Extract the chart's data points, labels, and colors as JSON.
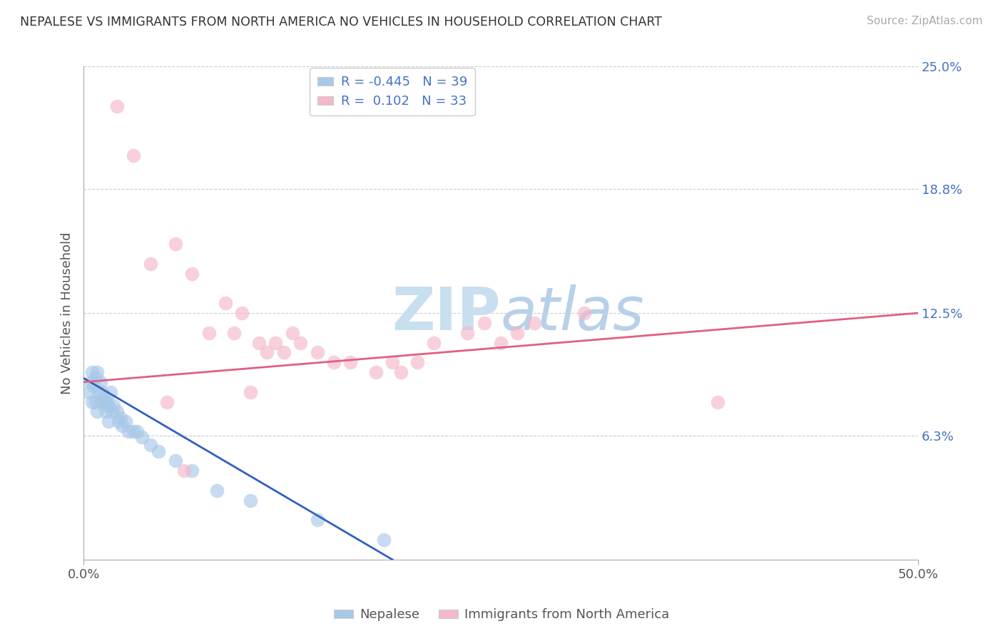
{
  "title": "NEPALESE VS IMMIGRANTS FROM NORTH AMERICA NO VEHICLES IN HOUSEHOLD CORRELATION CHART",
  "source": "Source: ZipAtlas.com",
  "ylabel": "No Vehicles in Household",
  "xmin": 0.0,
  "xmax": 50.0,
  "ymin": 0.0,
  "ymax": 25.0,
  "color_blue": "#a8c8e8",
  "color_pink": "#f4b8c8",
  "line_blue": "#3060c0",
  "line_pink": "#e06080",
  "watermark_color": "#c8dff0",
  "nepalese_x": [
    0.3,
    0.4,
    0.5,
    0.5,
    0.6,
    0.7,
    0.7,
    0.8,
    0.8,
    0.9,
    1.0,
    1.0,
    1.1,
    1.2,
    1.3,
    1.3,
    1.4,
    1.5,
    1.5,
    1.6,
    1.7,
    1.8,
    2.0,
    2.1,
    2.2,
    2.3,
    2.5,
    2.7,
    3.0,
    3.2,
    3.5,
    4.0,
    4.5,
    5.5,
    6.5,
    8.0,
    10.0,
    14.0,
    18.0
  ],
  "nepalese_y": [
    8.5,
    9.0,
    9.5,
    8.0,
    8.8,
    9.2,
    8.0,
    9.5,
    7.5,
    8.5,
    9.0,
    8.0,
    8.5,
    8.2,
    8.0,
    7.5,
    8.0,
    7.8,
    7.0,
    8.5,
    7.5,
    7.8,
    7.5,
    7.0,
    7.2,
    6.8,
    7.0,
    6.5,
    6.5,
    6.5,
    6.2,
    5.8,
    5.5,
    5.0,
    4.5,
    3.5,
    3.0,
    2.0,
    1.0
  ],
  "immigrants_x": [
    2.0,
    3.0,
    4.0,
    5.5,
    6.5,
    7.5,
    8.5,
    9.0,
    9.5,
    10.5,
    11.0,
    11.5,
    12.0,
    12.5,
    13.0,
    14.0,
    15.0,
    16.0,
    17.5,
    18.5,
    19.0,
    20.0,
    21.0,
    23.0,
    24.0,
    26.0,
    27.0,
    30.0,
    38.0,
    25.0,
    10.0,
    5.0,
    6.0
  ],
  "immigrants_y": [
    23.0,
    20.5,
    15.0,
    16.0,
    14.5,
    11.5,
    13.0,
    11.5,
    12.5,
    11.0,
    10.5,
    11.0,
    10.5,
    11.5,
    11.0,
    10.5,
    10.0,
    10.0,
    9.5,
    10.0,
    9.5,
    10.0,
    11.0,
    11.5,
    12.0,
    11.5,
    12.0,
    12.5,
    8.0,
    11.0,
    8.5,
    8.0,
    4.5
  ],
  "blue_line_x0": 0.0,
  "blue_line_y0": 9.2,
  "blue_line_x1": 18.5,
  "blue_line_y1": 0.0,
  "pink_line_x0": 0.0,
  "pink_line_y0": 9.0,
  "pink_line_x1": 50.0,
  "pink_line_y1": 12.5
}
